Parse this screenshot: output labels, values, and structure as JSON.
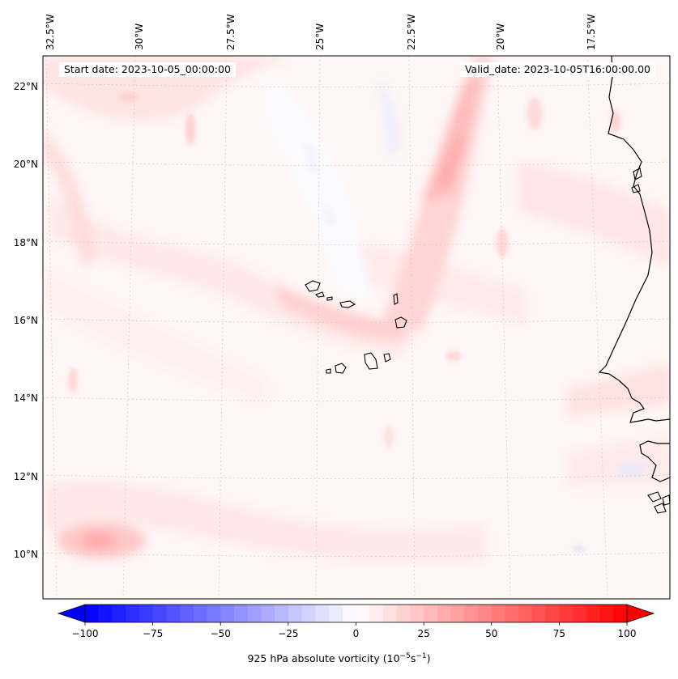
{
  "header": {
    "start_date": "Start date: 2023-10-05_00:00:00",
    "valid_date": "Valid_date: 2023-10-05T16:00:00.00"
  },
  "lon_labels": [
    "32.5°W",
    "30°W",
    "27.5°W",
    "25°W",
    "22.5°W",
    "20°W",
    "17.5°W"
  ],
  "lat_labels": [
    "22°N",
    "20°N",
    "18°N",
    "16°N",
    "14°N",
    "12°N",
    "10°N"
  ],
  "colorbar": {
    "min": -100,
    "max": 100,
    "ticks": [
      "−100",
      "−75",
      "−50",
      "−25",
      "0",
      "25",
      "50",
      "75",
      "100"
    ],
    "label_text": "925 hPa absolute vorticity (10",
    "label_exp1": "−5",
    "label_mid": "s",
    "label_exp2": "−1",
    "label_end": ")",
    "colors": {
      "negative": "#0000ff",
      "zero": "#ffffff",
      "positive": "#ff0000"
    }
  },
  "map": {
    "features": [
      "Cape Verde Islands",
      "West African coastline (Mauritania, Senegal, Gambia, Guinea-Bissau)",
      "Positive vorticity band from Cape Verde toward 22°N",
      "Weak negative vorticity region north-west of Cape Verde"
    ]
  }
}
